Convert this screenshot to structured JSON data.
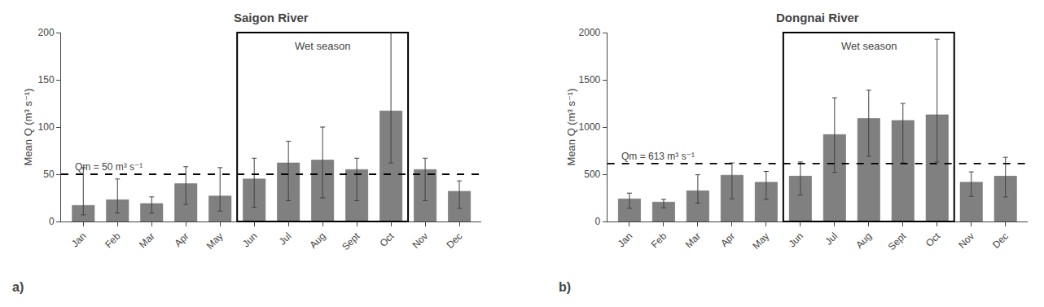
{
  "chart_data": [
    {
      "type": "bar",
      "title": "Saigon River",
      "ylabel": "Mean Q (m³ s⁻¹)",
      "categories": [
        "Jan",
        "Feb",
        "Mar",
        "Apr",
        "May",
        "Jun",
        "Jul",
        "Aug",
        "Sept",
        "Oct",
        "Nov",
        "Dec"
      ],
      "values": [
        17,
        23,
        19,
        40,
        27,
        45,
        62,
        65,
        55,
        117,
        55,
        32
      ],
      "errors_upper": [
        40,
        22,
        7,
        18,
        30,
        22,
        23,
        35,
        12,
        83,
        12,
        11
      ],
      "errors_lower": [
        10,
        14,
        10,
        22,
        16,
        30,
        40,
        40,
        33,
        55,
        33,
        18
      ],
      "color": "#808080",
      "ylim": [
        0,
        200
      ],
      "yticks": [
        0,
        50,
        100,
        150,
        200
      ],
      "grid": false,
      "reference_line": {
        "value": 50,
        "label": "Qm = 50 m³ s⁻¹"
      },
      "highlight_span": {
        "start": "Jun",
        "end": "Oct",
        "label": "Wet season"
      },
      "panel_label": "a)"
    },
    {
      "type": "bar",
      "title": "Dongnai River",
      "ylabel": "Mean Q (m³ s⁻¹)",
      "categories": [
        "Jan",
        "Feb",
        "Mar",
        "Apr",
        "May",
        "Jun",
        "Jul",
        "Aug",
        "Sept",
        "Oct",
        "Nov",
        "Dec"
      ],
      "values": [
        240,
        205,
        325,
        490,
        415,
        480,
        920,
        1090,
        1070,
        1130,
        415,
        480
      ],
      "errors_upper": [
        60,
        30,
        170,
        130,
        115,
        150,
        390,
        300,
        180,
        800,
        110,
        200
      ],
      "errors_lower": [
        100,
        60,
        130,
        250,
        180,
        200,
        400,
        400,
        450,
        500,
        150,
        220
      ],
      "color": "#808080",
      "ylim": [
        0,
        2000
      ],
      "yticks": [
        0,
        500,
        1000,
        1500,
        2000
      ],
      "grid": false,
      "reference_line": {
        "value": 613,
        "label": "Qm = 613 m³ s⁻¹"
      },
      "highlight_span": {
        "start": "Jun",
        "end": "Oct",
        "label": "Wet season"
      },
      "panel_label": "b)"
    }
  ]
}
